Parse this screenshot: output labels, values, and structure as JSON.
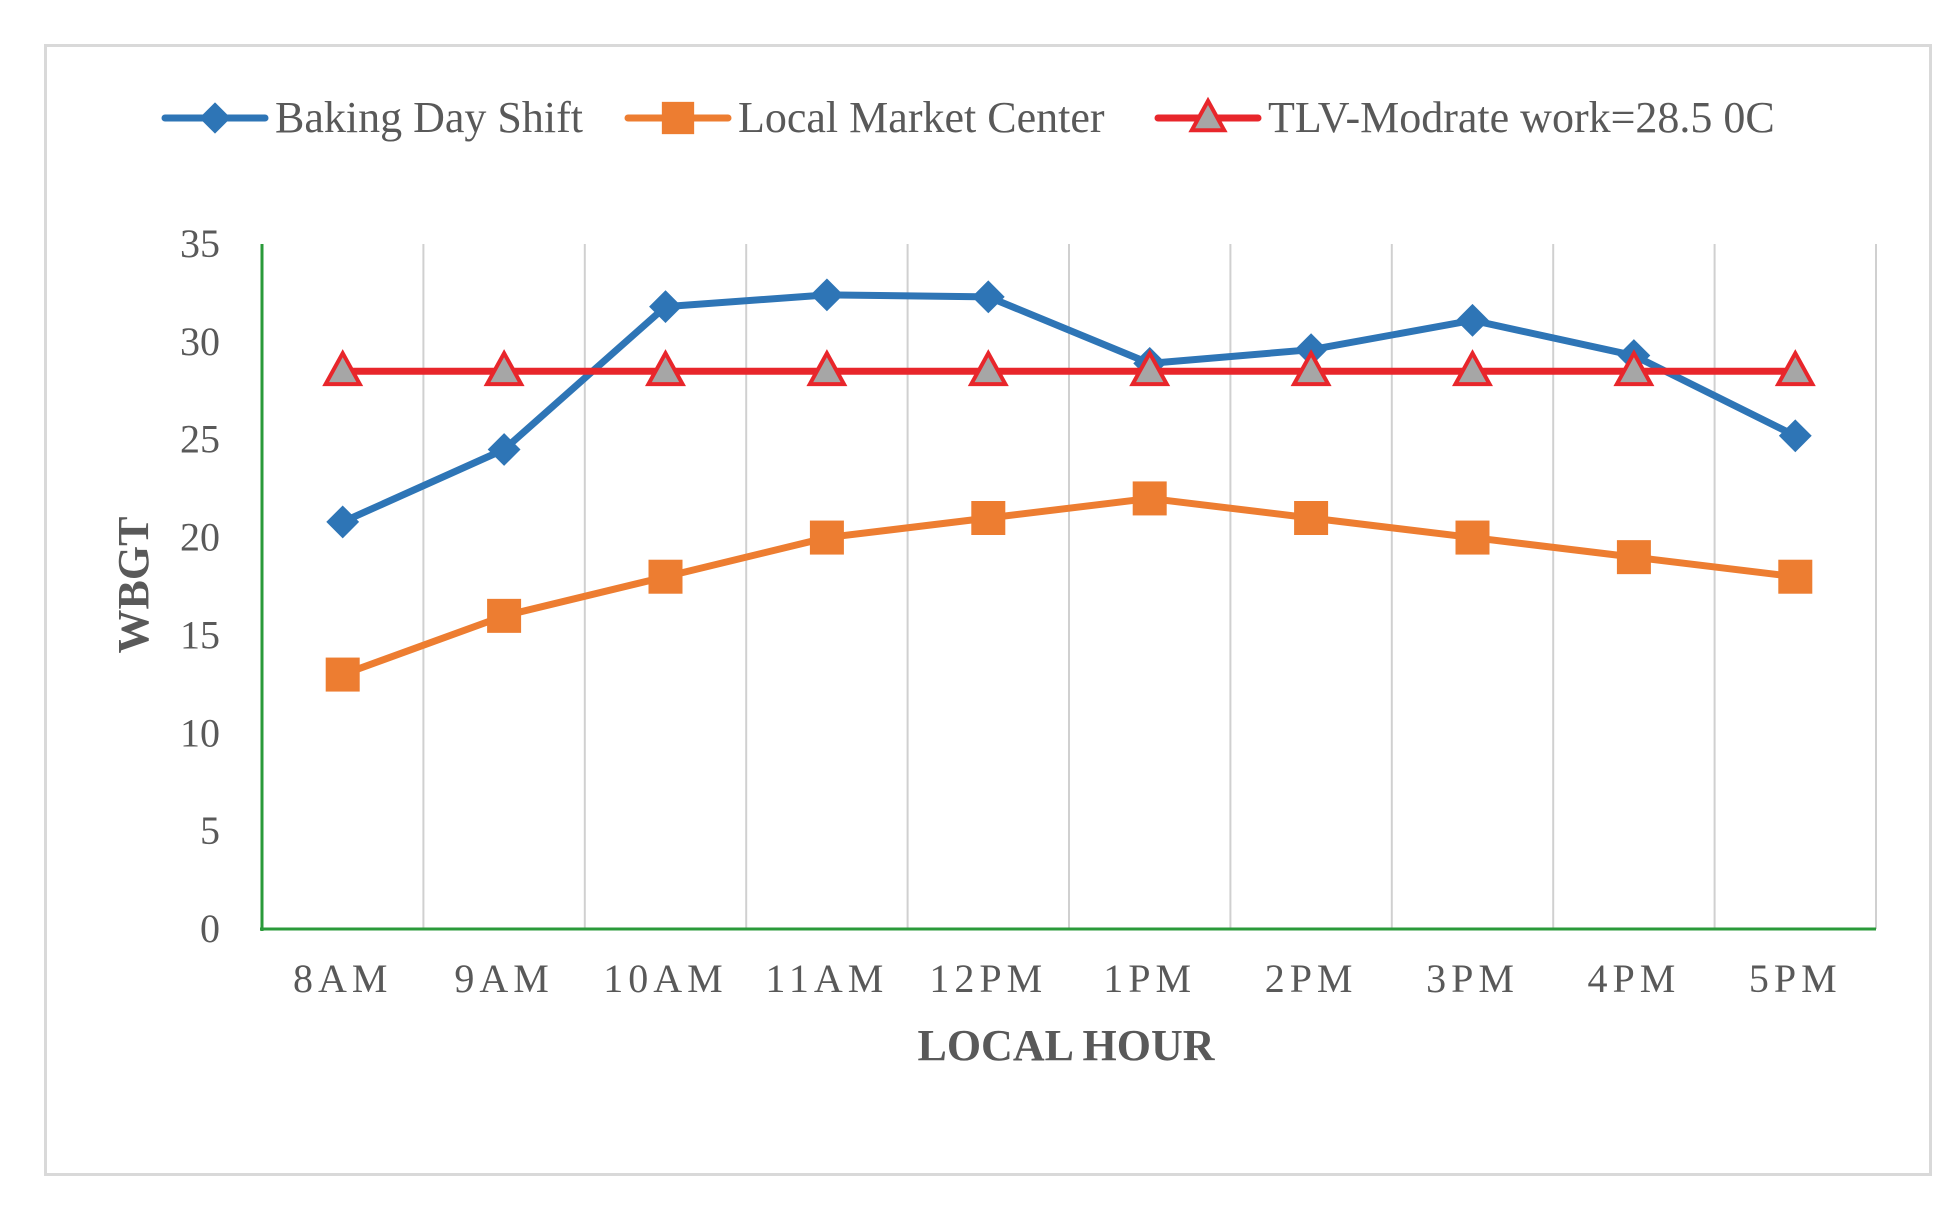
{
  "chart_data": {
    "type": "line",
    "title": "",
    "xlabel": "LOCAL HOUR",
    "ylabel": "WBGT",
    "categories": [
      "8AM",
      "9AM",
      "10AM",
      "11AM",
      "12PM",
      "1PM",
      "2PM",
      "3PM",
      "4PM",
      "5PM"
    ],
    "ylim": [
      0,
      35
    ],
    "yticks": [
      0,
      5,
      10,
      15,
      20,
      25,
      30,
      35
    ],
    "grid": "vertical",
    "legend_position": "top",
    "series": [
      {
        "name": "Baking Day Shift",
        "color": "#2e75b6",
        "marker": "diamond",
        "values": [
          20.8,
          24.5,
          31.8,
          32.4,
          32.3,
          28.9,
          29.6,
          31.1,
          29.3,
          25.2
        ]
      },
      {
        "name": "Local Market Center",
        "color": "#ed7d31",
        "marker": "square",
        "values": [
          13,
          16,
          18,
          20,
          21,
          22,
          21,
          20,
          19,
          18
        ]
      },
      {
        "name": "TLV-Modrate work=28.5 0C",
        "color": "#e8262b",
        "marker": "triangle",
        "marker_fill": "#a6a6a6",
        "values": [
          28.5,
          28.5,
          28.5,
          28.5,
          28.5,
          28.5,
          28.5,
          28.5,
          28.5,
          28.5
        ]
      }
    ]
  },
  "axis_color": "#2a9a3a",
  "grid_color": "#d0d0d0"
}
